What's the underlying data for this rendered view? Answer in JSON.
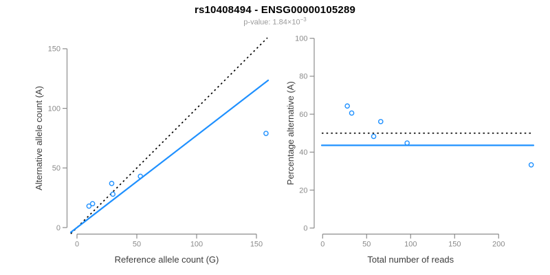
{
  "header": {
    "title": "rs10408494 - ENSG00000105289",
    "pvalue_prefix": "p-value: ",
    "pvalue_base": "1.84×10",
    "pvalue_exponent": "−3"
  },
  "colors": {
    "accent_blue": "#1E90FF",
    "line_black": "#000000",
    "axis_gray": "#8c8c8c",
    "tick_label_gray": "#8a8a8a",
    "axis_title_dark": "#3d3d3d",
    "subtitle_gray": "#9b9b9b"
  },
  "chart_data": [
    {
      "type": "scatter",
      "name": "allele-counts-scatter",
      "xlabel": "Reference allele count (G)",
      "ylabel": "Alternative allele count (A)",
      "xlim": [
        0,
        150
      ],
      "ylim": [
        0,
        150
      ],
      "xticks": [
        0,
        50,
        100,
        150
      ],
      "yticks": [
        0,
        50,
        100,
        150
      ],
      "grid": false,
      "points": [
        [
          10,
          18
        ],
        [
          13,
          20
        ],
        [
          29,
          37
        ],
        [
          30,
          28
        ],
        [
          53,
          43
        ],
        [
          158,
          79
        ]
      ],
      "lines": [
        {
          "name": "identity-null-line",
          "style": "dotted",
          "color": "black",
          "slope": 1,
          "intercept": 0
        },
        {
          "name": "fitted-line",
          "style": "solid",
          "color": "blue",
          "slope": 0.773,
          "intercept": 0
        }
      ]
    },
    {
      "type": "scatter",
      "name": "percentage-alternative-scatter",
      "xlabel": "Total number of reads",
      "ylabel": "Percentage alternative (A)",
      "xlim": [
        0,
        200
      ],
      "ylim": [
        0,
        100
      ],
      "xticks": [
        0,
        50,
        100,
        150,
        200
      ],
      "yticks": [
        0,
        20,
        40,
        60,
        80,
        100
      ],
      "grid": false,
      "points": [
        [
          28,
          64.3
        ],
        [
          33,
          60.6
        ],
        [
          58,
          48.3
        ],
        [
          66,
          56.1
        ],
        [
          96,
          44.8
        ],
        [
          237,
          33.3
        ]
      ],
      "lines": [
        {
          "name": "null-50pct-line",
          "style": "dotted",
          "color": "black",
          "slope": 0,
          "intercept": 50
        },
        {
          "name": "fitted-pct-line",
          "style": "solid",
          "color": "blue",
          "slope": 0,
          "intercept": 43.6
        }
      ]
    }
  ]
}
